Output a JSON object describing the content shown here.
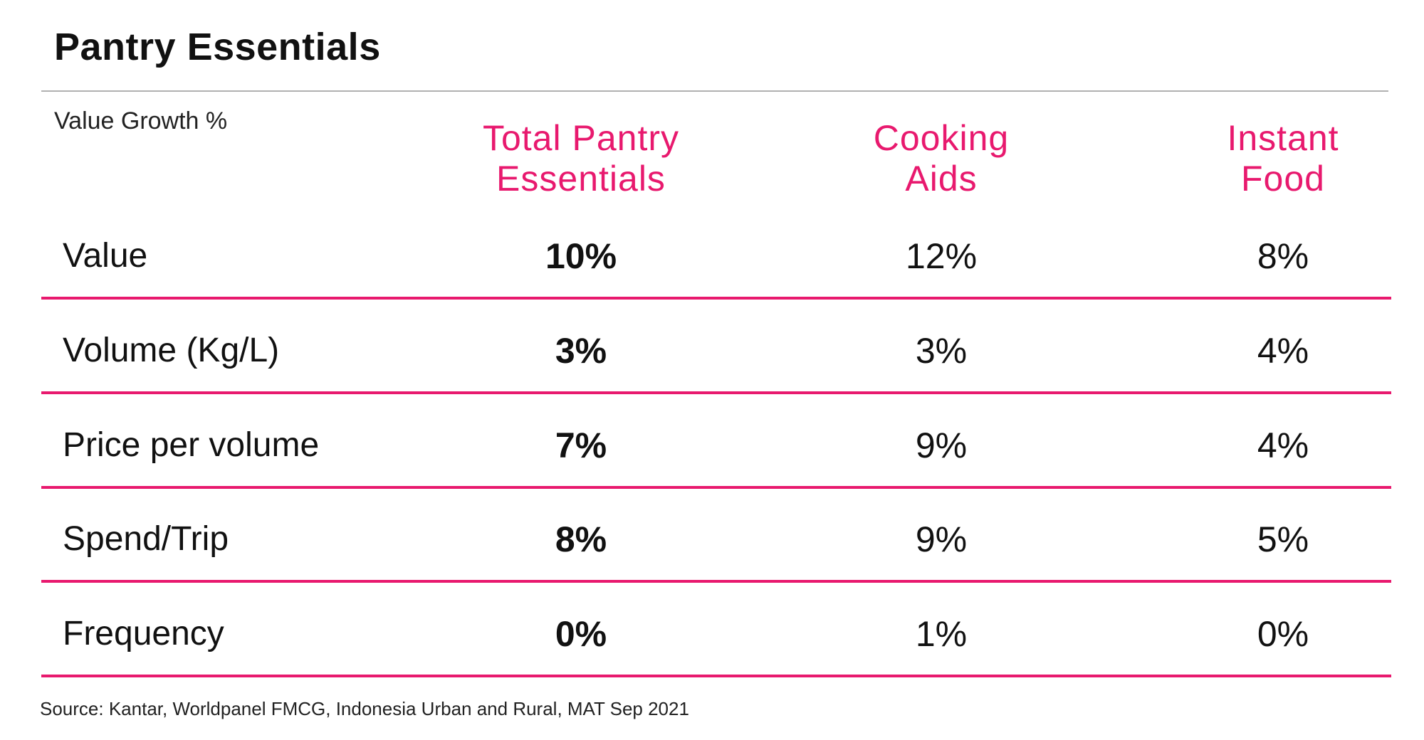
{
  "title": "Pantry Essentials",
  "source": "Source: Kantar, Worldpanel FMCG, Indonesia Urban and Rural, MAT Sep 2021",
  "colors": {
    "accent": "#e8196e",
    "text": "#111111",
    "top_rule": "#b0b0b0"
  },
  "chart_data": {
    "type": "table",
    "title": "Pantry Essentials",
    "subtitle": "Value Growth %",
    "columns": [
      {
        "line1": "Total Pantry",
        "line2": "Essentials"
      },
      {
        "line1": "Cooking",
        "line2": "Aids"
      },
      {
        "line1": "Instant",
        "line2": "Food"
      }
    ],
    "rows": [
      {
        "label": "Value",
        "values": [
          "10%",
          "12%",
          "8%"
        ]
      },
      {
        "label": "Volume (Kg/L)",
        "values": [
          "3%",
          "3%",
          "4%"
        ]
      },
      {
        "label": "Price per volume",
        "values": [
          "7%",
          "9%",
          "4%"
        ]
      },
      {
        "label": "Spend/Trip",
        "values": [
          "8%",
          "9%",
          "5%"
        ]
      },
      {
        "label": "Frequency",
        "values": [
          "0%",
          "1%",
          "0%"
        ]
      }
    ],
    "bold_column": 0
  }
}
